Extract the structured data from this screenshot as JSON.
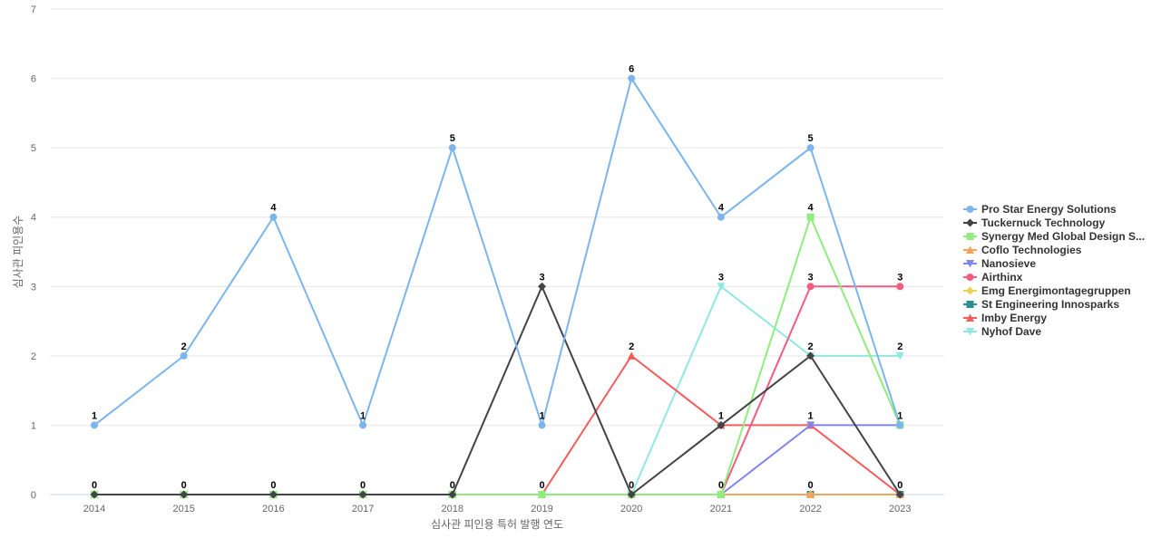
{
  "chart_data": {
    "type": "line",
    "title": "",
    "xlabel": "심사관 피인용 특허 발행 연도",
    "ylabel": "심사관 피인용수",
    "x": [
      "2014",
      "2015",
      "2016",
      "2017",
      "2018",
      "2019",
      "2020",
      "2021",
      "2022",
      "2023"
    ],
    "ylim": [
      0,
      7
    ],
    "yticks": [
      0,
      1,
      2,
      3,
      4,
      5,
      6,
      7
    ],
    "grid": true,
    "legend_position": "right",
    "series": [
      {
        "name": "Pro Star Energy Solutions",
        "color": "#7cb5ec",
        "marker": "circle",
        "values": [
          1,
          2,
          4,
          1,
          5,
          1,
          6,
          4,
          5,
          1
        ]
      },
      {
        "name": "Tuckernuck Technology",
        "color": "#434348",
        "marker": "diamond",
        "values": [
          0,
          0,
          0,
          0,
          0,
          3,
          0,
          1,
          2,
          0
        ]
      },
      {
        "name": "Synergy Med Global Design S...",
        "color": "#90ed7d",
        "marker": "square",
        "values": [
          0,
          0,
          0,
          0,
          0,
          0,
          0,
          0,
          4,
          1
        ]
      },
      {
        "name": "Coflo Technologies",
        "color": "#f7a35c",
        "marker": "triangle",
        "values": [
          0,
          0,
          0,
          0,
          0,
          0,
          0,
          0,
          0,
          0
        ]
      },
      {
        "name": "Nanosieve",
        "color": "#8085e9",
        "marker": "triangle-down",
        "values": [
          0,
          0,
          0,
          0,
          0,
          0,
          0,
          0,
          1,
          1
        ]
      },
      {
        "name": "Airthinx",
        "color": "#f15c80",
        "marker": "circle",
        "values": [
          0,
          0,
          0,
          0,
          0,
          0,
          0,
          0,
          3,
          3
        ]
      },
      {
        "name": "Emg Energimontagegruppen",
        "color": "#e4d354",
        "marker": "diamond",
        "values": [
          0,
          0,
          0,
          0,
          0,
          0,
          0,
          0,
          0,
          0
        ]
      },
      {
        "name": "St Engineering Innosparks",
        "color": "#2b908f",
        "marker": "square",
        "values": [
          0,
          0,
          0,
          0,
          0,
          0,
          0,
          0,
          0,
          0
        ]
      },
      {
        "name": "Imby Energy",
        "color": "#f45b5b",
        "marker": "triangle",
        "values": [
          0,
          0,
          0,
          0,
          0,
          0,
          2,
          1,
          1,
          0
        ]
      },
      {
        "name": "Nyhof Dave",
        "color": "#91e8e1",
        "marker": "triangle-down",
        "values": [
          0,
          0,
          0,
          0,
          0,
          0,
          0,
          3,
          2,
          2
        ]
      }
    ],
    "data_labels": {
      "x": [
        "2014",
        "2015",
        "2016",
        "2017",
        "2018",
        "2019",
        "2020",
        "2021",
        "2022",
        "2023"
      ],
      "upper": [
        "1",
        "2",
        "4",
        "1",
        "5",
        "3",
        "6",
        "4",
        "4",
        "3"
      ],
      "upper_values": [
        1,
        2,
        4,
        1,
        5,
        3,
        6,
        4,
        4,
        3
      ],
      "extra": [
        {
          "x": "2019",
          "value": 1,
          "text": "1"
        },
        {
          "x": "2020",
          "value": 2,
          "text": "2"
        },
        {
          "x": "2021",
          "value": 3,
          "text": "3"
        },
        {
          "x": "2021",
          "value": 1,
          "text": "1"
        },
        {
          "x": "2022",
          "value": 5,
          "text": "5"
        },
        {
          "x": "2022",
          "value": 3,
          "text": "3"
        },
        {
          "x": "2022",
          "value": 2,
          "text": "2"
        },
        {
          "x": "2022",
          "value": 1,
          "text": "1"
        },
        {
          "x": "2023",
          "value": 2,
          "text": "2"
        },
        {
          "x": "2023",
          "value": 1,
          "text": "1"
        }
      ],
      "zero": [
        "0",
        "0",
        "0",
        "0",
        "0",
        "0",
        "0",
        "0",
        "0",
        "0"
      ]
    }
  }
}
